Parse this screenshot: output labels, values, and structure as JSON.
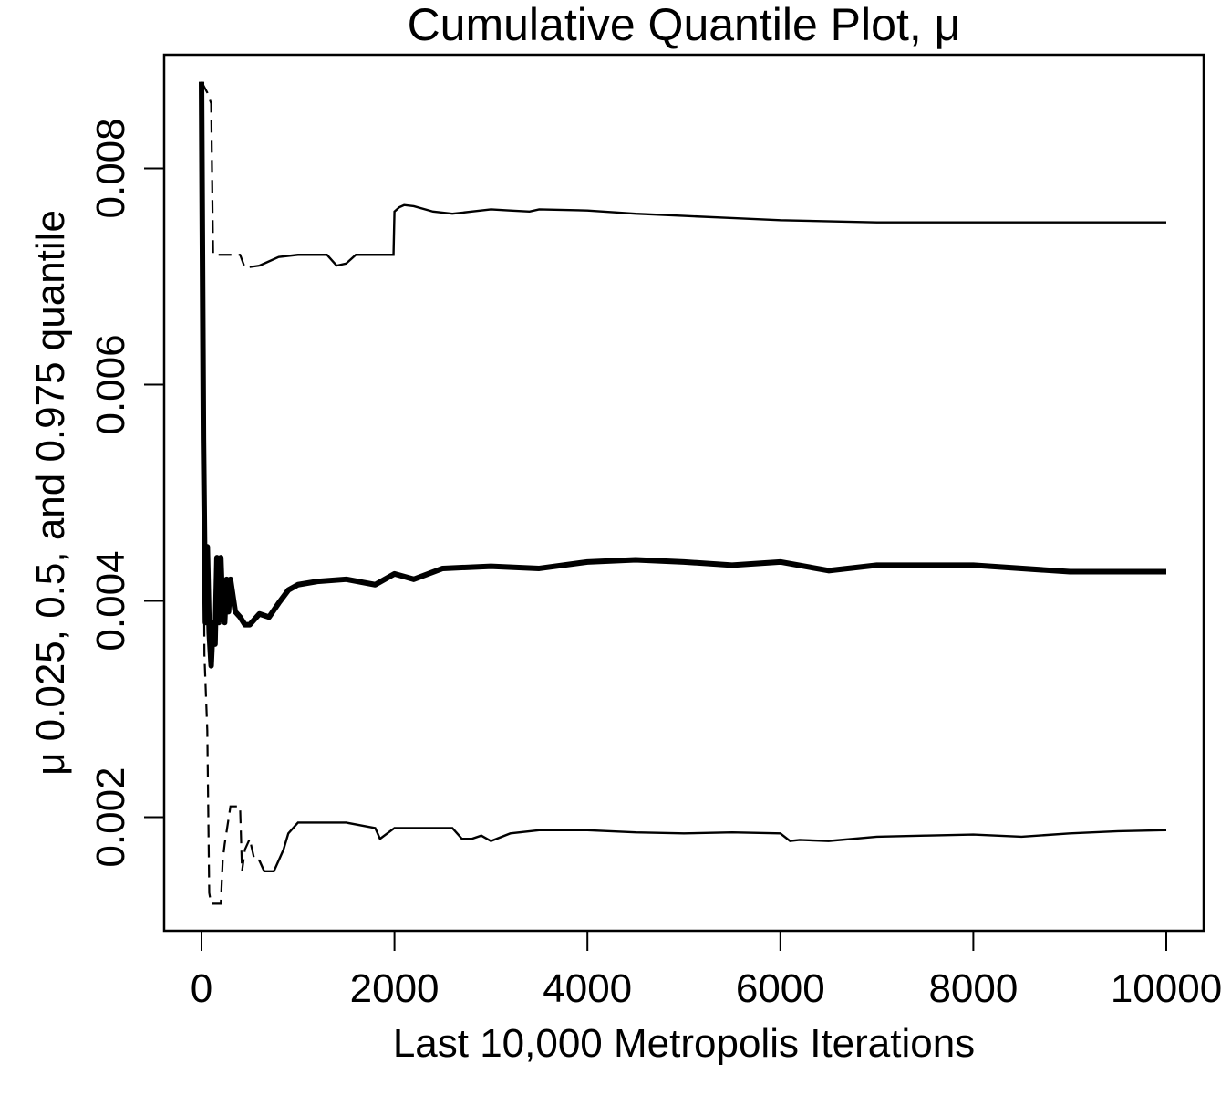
{
  "chart_data": {
    "type": "line",
    "title": "Cumulative Quantile Plot, μ",
    "xlabel": "Last 10,000 Metropolis Iterations",
    "ylabel": "μ 0.025, 0.5, and 0.975 quantile",
    "xlim": [
      0,
      10000
    ],
    "ylim": [
      0.00095,
      0.00905
    ],
    "xticks": [
      0,
      2000,
      4000,
      6000,
      8000,
      10000
    ],
    "xtick_labels": [
      "0",
      "2000",
      "4000",
      "6000",
      "8000",
      "10000"
    ],
    "yticks": [
      0.002,
      0.004,
      0.006,
      0.008
    ],
    "ytick_labels": [
      "0.002",
      "0.004",
      "0.006",
      "0.008"
    ],
    "grid": false,
    "legend": "none",
    "series": [
      {
        "role": "0.975 quantile",
        "style": "thin, dashed at start",
        "x": [
          0,
          60,
          100,
          120,
          400,
          450,
          600,
          800,
          1000,
          1300,
          1400,
          1500,
          1600,
          1700,
          1990,
          2000,
          2050,
          2100,
          2200,
          2400,
          2600,
          2800,
          3000,
          3200,
          3400,
          3500,
          4000,
          4500,
          5000,
          5500,
          6000,
          7000,
          8000,
          9000,
          10000
        ],
        "y": [
          0.0088,
          0.0087,
          0.0086,
          0.0072,
          0.0072,
          0.00708,
          0.0071,
          0.00718,
          0.0072,
          0.0072,
          0.0071,
          0.00712,
          0.0072,
          0.0072,
          0.0072,
          0.0076,
          0.00764,
          0.00766,
          0.00765,
          0.0076,
          0.00758,
          0.0076,
          0.00762,
          0.00761,
          0.0076,
          0.00762,
          0.00761,
          0.00758,
          0.00756,
          0.00754,
          0.00752,
          0.0075,
          0.0075,
          0.0075,
          0.0075
        ]
      },
      {
        "role": "0.5 quantile",
        "style": "thick",
        "x": [
          0,
          20,
          40,
          60,
          80,
          100,
          120,
          140,
          160,
          180,
          200,
          220,
          240,
          260,
          280,
          300,
          350,
          400,
          450,
          500,
          600,
          700,
          800,
          900,
          1000,
          1200,
          1500,
          1800,
          2000,
          2200,
          2500,
          3000,
          3500,
          4000,
          4500,
          5000,
          5500,
          6000,
          6500,
          7000,
          8000,
          9000,
          10000
        ],
        "y": [
          0.0088,
          0.0055,
          0.0038,
          0.0045,
          0.0037,
          0.0034,
          0.0038,
          0.0036,
          0.0044,
          0.0038,
          0.0044,
          0.0039,
          0.0038,
          0.0042,
          0.0039,
          0.0042,
          0.0039,
          0.00385,
          0.00378,
          0.00378,
          0.00388,
          0.00385,
          0.00398,
          0.0041,
          0.00415,
          0.00418,
          0.0042,
          0.00415,
          0.00425,
          0.0042,
          0.0043,
          0.00432,
          0.0043,
          0.00436,
          0.00438,
          0.00436,
          0.00433,
          0.00436,
          0.00428,
          0.00433,
          0.00433,
          0.00427,
          0.00427
        ]
      },
      {
        "role": "0.025 quantile",
        "style": "thin, dashed at start",
        "x": [
          0,
          30,
          60,
          80,
          100,
          200,
          220,
          240,
          300,
          350,
          400,
          420,
          450,
          500,
          550,
          600,
          650,
          750,
          800,
          850,
          900,
          1000,
          1100,
          1200,
          1500,
          1800,
          1850,
          2000,
          2200,
          2600,
          2700,
          2800,
          2900,
          3000,
          3200,
          3500,
          4000,
          4500,
          5000,
          5500,
          6000,
          6100,
          6200,
          6500,
          7000,
          7500,
          8000,
          8500,
          9000,
          9500,
          10000
        ],
        "y": [
          0.0088,
          0.0035,
          0.0028,
          0.0013,
          0.0012,
          0.0012,
          0.0016,
          0.00175,
          0.0021,
          0.0021,
          0.0021,
          0.0015,
          0.0017,
          0.0018,
          0.0016,
          0.0016,
          0.0015,
          0.0015,
          0.0016,
          0.0017,
          0.00185,
          0.00195,
          0.00195,
          0.00195,
          0.00195,
          0.0019,
          0.0018,
          0.0019,
          0.0019,
          0.0019,
          0.0018,
          0.0018,
          0.00183,
          0.00178,
          0.00185,
          0.00188,
          0.00188,
          0.00186,
          0.00185,
          0.00186,
          0.00185,
          0.00178,
          0.00179,
          0.00178,
          0.00182,
          0.00183,
          0.00184,
          0.00182,
          0.00185,
          0.00187,
          0.00188
        ]
      }
    ]
  }
}
